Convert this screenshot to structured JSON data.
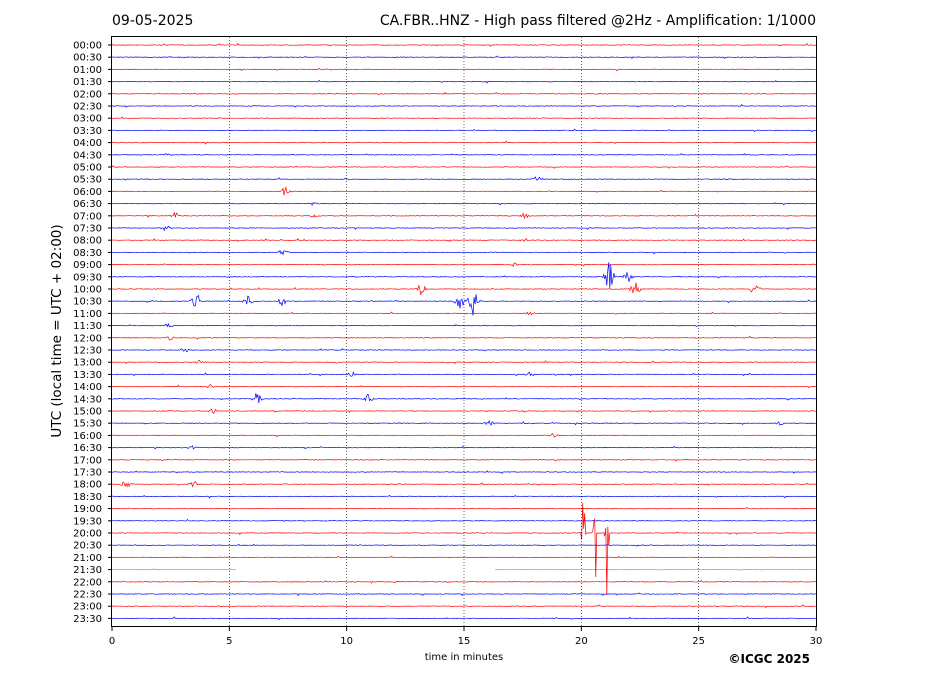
{
  "header": {
    "date": "09-05-2025",
    "title": "CA.FBR..HNZ - High pass filtered @2Hz - Amplification: 1/1000"
  },
  "chart_data": {
    "type": "line",
    "xlabel": "time in minutes",
    "ylabel": "UTC (local time = UTC + 02:00)",
    "xlim": [
      0,
      30
    ],
    "xticks": [
      0,
      5,
      10,
      15,
      20,
      25,
      30
    ],
    "vertical_gridlines": [
      5,
      10,
      15,
      20,
      25
    ],
    "grid": "vertical dotted",
    "row_labels": [
      "00:00",
      "00:30",
      "01:00",
      "01:30",
      "02:00",
      "02:30",
      "03:00",
      "03:30",
      "04:00",
      "04:30",
      "05:00",
      "05:30",
      "06:00",
      "06:30",
      "07:00",
      "07:30",
      "08:00",
      "08:30",
      "09:00",
      "09:30",
      "10:00",
      "10:30",
      "11:00",
      "11:30",
      "12:00",
      "12:30",
      "13:00",
      "13:30",
      "14:00",
      "14:30",
      "15:00",
      "15:30",
      "16:00",
      "16:30",
      "17:00",
      "17:30",
      "18:00",
      "18:30",
      "19:00",
      "19:30",
      "20:00",
      "20:30",
      "21:00",
      "21:30",
      "22:00",
      "22:30",
      "23:00",
      "23:30"
    ],
    "row_colors": [
      "#ff0000",
      "#0000ff"
    ],
    "data_gap_rows": [
      {
        "row": "21:30",
        "gap": [
          5.3,
          16.3
        ]
      }
    ],
    "events": [
      {
        "row": "04:30",
        "t": 2.4,
        "amp": 0.15
      },
      {
        "row": "05:30",
        "t": 18.1,
        "amp": 0.4
      },
      {
        "row": "06:00",
        "t": 7.4,
        "amp": 0.4
      },
      {
        "row": "06:30",
        "t": 8.6,
        "amp": 0.2
      },
      {
        "row": "07:00",
        "t": 2.7,
        "amp": 0.3
      },
      {
        "row": "07:00",
        "t": 8.6,
        "amp": 0.25
      },
      {
        "row": "07:00",
        "t": 17.6,
        "amp": 0.25
      },
      {
        "row": "07:30",
        "t": 2.3,
        "amp": 0.3
      },
      {
        "row": "08:00",
        "t": 17.6,
        "amp": 0.2
      },
      {
        "row": "08:30",
        "t": 7.3,
        "amp": 0.3
      },
      {
        "row": "09:00",
        "t": 17.2,
        "amp": 0.2
      },
      {
        "row": "09:30",
        "t": 21.2,
        "amp": 1.6
      },
      {
        "row": "09:30",
        "t": 22.0,
        "amp": 0.5
      },
      {
        "row": "10:00",
        "t": 13.2,
        "amp": 0.6
      },
      {
        "row": "10:00",
        "t": 22.3,
        "amp": 0.9
      },
      {
        "row": "10:00",
        "t": 27.4,
        "amp": 0.7
      },
      {
        "row": "10:30",
        "t": 3.6,
        "amp": 0.7
      },
      {
        "row": "10:30",
        "t": 5.8,
        "amp": 0.5
      },
      {
        "row": "10:30",
        "t": 7.3,
        "amp": 0.5
      },
      {
        "row": "10:30",
        "t": 14.8,
        "amp": 1.1
      },
      {
        "row": "10:30",
        "t": 15.4,
        "amp": 1.4
      },
      {
        "row": "11:00",
        "t": 17.8,
        "amp": 0.2
      },
      {
        "row": "11:30",
        "t": 2.4,
        "amp": 0.25
      },
      {
        "row": "12:00",
        "t": 2.5,
        "amp": 0.2
      },
      {
        "row": "12:30",
        "t": 3.1,
        "amp": 0.2
      },
      {
        "row": "13:00",
        "t": 3.7,
        "amp": 0.2
      },
      {
        "row": "13:30",
        "t": 10.2,
        "amp": 0.3
      },
      {
        "row": "13:30",
        "t": 17.8,
        "amp": 0.2
      },
      {
        "row": "14:00",
        "t": 4.2,
        "amp": 0.2
      },
      {
        "row": "14:30",
        "t": 6.2,
        "amp": 0.7
      },
      {
        "row": "14:30",
        "t": 10.9,
        "amp": 0.4
      },
      {
        "row": "15:00",
        "t": 4.3,
        "amp": 0.2
      },
      {
        "row": "15:30",
        "t": 16.1,
        "amp": 0.25
      },
      {
        "row": "15:30",
        "t": 28.5,
        "amp": 0.25
      },
      {
        "row": "16:00",
        "t": 18.8,
        "amp": 0.2
      },
      {
        "row": "16:30",
        "t": 3.4,
        "amp": 0.2
      },
      {
        "row": "18:00",
        "t": 0.6,
        "amp": 0.4
      },
      {
        "row": "18:00",
        "t": 3.5,
        "amp": 0.3
      },
      {
        "row": "20:00",
        "t": 20.1,
        "amp": 6.5
      },
      {
        "row": "20:00",
        "t": 20.6,
        "amp": 6.0
      },
      {
        "row": "20:00",
        "t": 21.1,
        "amp": 6.5
      }
    ]
  },
  "footer": {
    "copyright": "©ICGC 2025"
  }
}
